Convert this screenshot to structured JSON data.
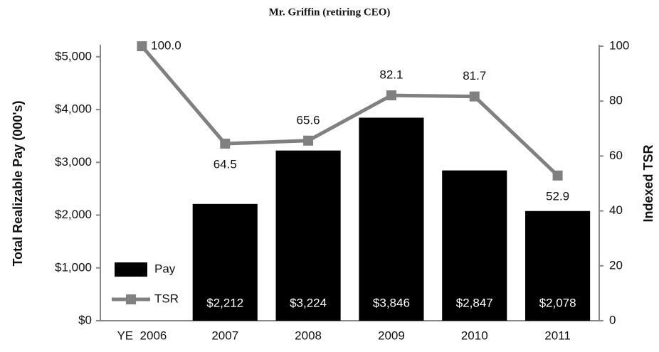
{
  "chart_data": {
    "type": "bar_line",
    "title": "Mr. Griffin (retiring CEO)",
    "ylabel": "Total Realizable Pay (000's)",
    "y2label": "Indexed TSR",
    "categories": [
      "YE  2006",
      "2007",
      "2008",
      "2009",
      "2010",
      "2011"
    ],
    "series": [
      {
        "name": "Pay",
        "type": "bar",
        "color": "#000000",
        "values": [
          null,
          2212,
          3224,
          3846,
          2847,
          2078
        ],
        "value_labels": [
          null,
          "$2,212",
          "$3,224",
          "$3,846",
          "$2,847",
          "$2,078"
        ]
      },
      {
        "name": "TSR",
        "type": "line",
        "axis": "y2",
        "color": "#808080",
        "values": [
          100,
          64.5,
          65.6,
          82.1,
          81.7,
          52.9
        ],
        "value_labels": [
          "100.0",
          "64.5",
          "65.6",
          "82.1",
          "81.7",
          "52.9"
        ]
      }
    ],
    "ylim": [
      0,
      5200
    ],
    "yticks": [
      {
        "value": 0,
        "label": "$0"
      },
      {
        "value": 1000,
        "label": "$1,000"
      },
      {
        "value": 2000,
        "label": "$2,000"
      },
      {
        "value": 3000,
        "label": "$3,000"
      },
      {
        "value": 4000,
        "label": "$4,000"
      },
      {
        "value": 5000,
        "label": "$5,000"
      }
    ],
    "y2lim": [
      0,
      100
    ],
    "y2ticks": [
      0,
      20,
      40,
      60,
      80,
      100
    ],
    "legend": "lower left"
  }
}
